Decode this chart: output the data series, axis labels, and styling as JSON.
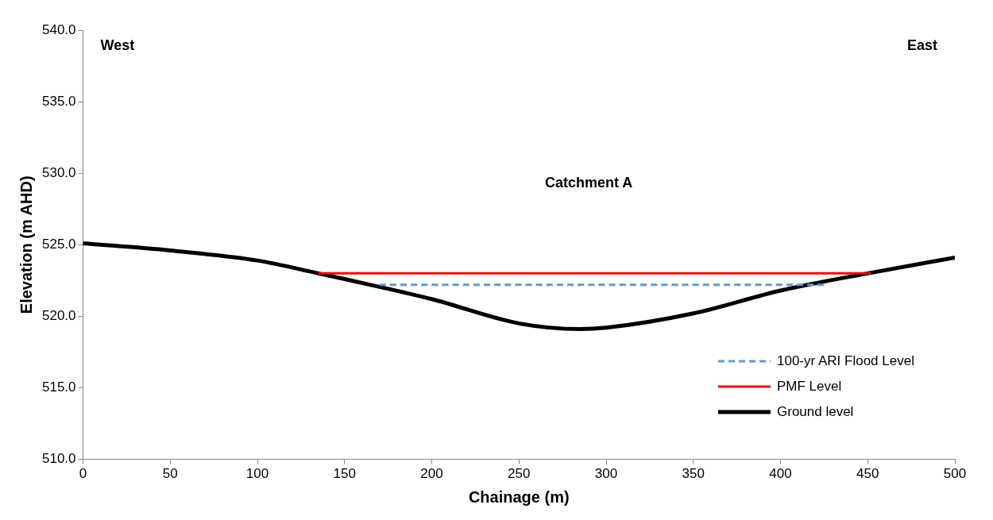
{
  "chart_data": {
    "type": "line",
    "xlabel": "Chainage (m)",
    "ylabel": "Elevation (m AHD)",
    "xlim": [
      0,
      500
    ],
    "xticks": [
      0,
      50,
      100,
      150,
      200,
      250,
      300,
      350,
      400,
      450,
      500
    ],
    "ylim": [
      510,
      540
    ],
    "yticks": [
      {
        "value": 510,
        "label": "510.0"
      },
      {
        "value": 515,
        "label": "515.0"
      },
      {
        "value": 520,
        "label": "520.0"
      },
      {
        "value": 525,
        "label": "525.0"
      },
      {
        "value": 530,
        "label": "530.0"
      },
      {
        "value": 535,
        "label": "535.0"
      },
      {
        "value": 540,
        "label": "540.0"
      }
    ],
    "grid": false,
    "legend": "bottom right",
    "marker": "none",
    "annotations": [
      "West",
      "East",
      "Catchment A"
    ],
    "series": [
      {
        "name": "100-yr ARI Flood Level",
        "color": "#5b9bd5",
        "line_style": "dashed",
        "x": [
          170,
          425
        ],
        "values": [
          522.2,
          522.2
        ]
      },
      {
        "name": "PMF Level",
        "color": "#ff0000",
        "line_style": "solid",
        "x": [
          135,
          452
        ],
        "values": [
          523.0,
          523.0
        ]
      },
      {
        "name": "Ground level",
        "color": "#000000",
        "line_style": "solid",
        "x": [
          0,
          50,
          100,
          135,
          150,
          200,
          250,
          285,
          300,
          350,
          400,
          450,
          500
        ],
        "values": [
          525.1,
          524.6,
          523.9,
          523.0,
          522.6,
          521.2,
          519.5,
          519.1,
          519.2,
          520.2,
          521.8,
          523.0,
          524.1
        ]
      }
    ]
  }
}
